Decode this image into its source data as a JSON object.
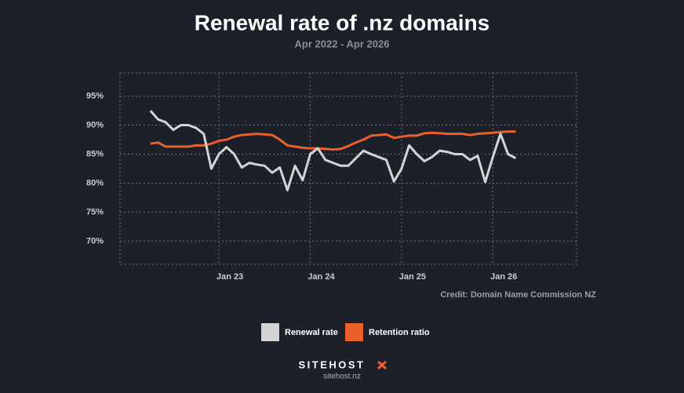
{
  "chart_data": {
    "type": "line",
    "title": "Renewal rate of .nz domains",
    "subtitle": "Apr 2022 - Apr 2026",
    "credit": "Credit: Domain Name Commission NZ",
    "x": [
      "2022-04",
      "2022-05",
      "2022-06",
      "2022-07",
      "2022-08",
      "2022-09",
      "2022-10",
      "2022-11",
      "2022-12",
      "2023-01",
      "2023-02",
      "2023-03",
      "2023-04",
      "2023-05",
      "2023-06",
      "2023-07",
      "2023-08",
      "2023-09",
      "2023-10",
      "2023-11",
      "2023-12",
      "2024-01",
      "2024-02",
      "2024-03",
      "2024-04",
      "2024-05",
      "2024-06",
      "2024-07",
      "2024-08",
      "2024-09",
      "2024-10",
      "2024-11",
      "2024-12",
      "2025-01",
      "2025-02",
      "2025-03",
      "2025-04",
      "2025-05",
      "2025-06",
      "2025-07",
      "2025-08",
      "2025-09",
      "2025-10",
      "2025-11",
      "2025-12",
      "2026-01",
      "2026-02",
      "2026-03",
      "2026-04"
    ],
    "series": [
      {
        "name": "Renewal rate",
        "color": "#d4d4d4",
        "values": [
          92.5,
          91,
          90.5,
          89.2,
          90,
          90,
          89.5,
          88.5,
          82.5,
          85,
          86.2,
          85,
          82.7,
          83.5,
          83.2,
          83,
          81.8,
          82.7,
          78.8,
          83,
          80.5,
          85,
          86,
          84,
          83.5,
          83,
          83,
          84.3,
          85.6,
          85,
          84.5,
          84,
          80.3,
          82.5,
          86.5,
          85,
          83.8,
          84.5,
          85.6,
          85.4,
          85,
          85,
          84,
          84.7,
          80.2,
          84.5,
          88.5,
          85,
          84.3
        ]
      },
      {
        "name": "Retention ratio",
        "color": "#e8602c",
        "values": [
          86.8,
          87,
          86.3,
          86.3,
          86.3,
          86.3,
          86.5,
          86.5,
          86.8,
          87.3,
          87.5,
          88,
          88.3,
          88.4,
          88.5,
          88.4,
          88.3,
          87.5,
          86.5,
          86.3,
          86.1,
          86,
          86,
          85.9,
          85.8,
          85.9,
          86.4,
          87,
          87.5,
          88.2,
          88.3,
          88.4,
          87.8,
          88,
          88.2,
          88.2,
          88.6,
          88.7,
          88.6,
          88.5,
          88.5,
          88.5,
          88.3,
          88.5,
          88.6,
          88.7,
          88.8,
          88.9,
          88.9
        ]
      }
    ],
    "xlim": [
      "2021-12",
      "2026-12"
    ],
    "xticks": [
      {
        "value": "2023-01",
        "label": "Jan 23"
      },
      {
        "value": "2024-01",
        "label": "Jan 24"
      },
      {
        "value": "2025-01",
        "label": "Jan 25"
      },
      {
        "value": "2026-01",
        "label": "Jan 26"
      }
    ],
    "ylim": [
      66,
      99
    ],
    "yticks": [
      {
        "value": 70,
        "label": "70%"
      },
      {
        "value": 75,
        "label": "75%"
      },
      {
        "value": 80,
        "label": "80%"
      },
      {
        "value": 85,
        "label": "85%"
      },
      {
        "value": 90,
        "label": "90%"
      },
      {
        "value": 95,
        "label": "95%"
      }
    ],
    "grid": true,
    "legend": "bottom"
  },
  "footer": {
    "brand": "SITEHOST",
    "url": "sitehost.nz"
  }
}
